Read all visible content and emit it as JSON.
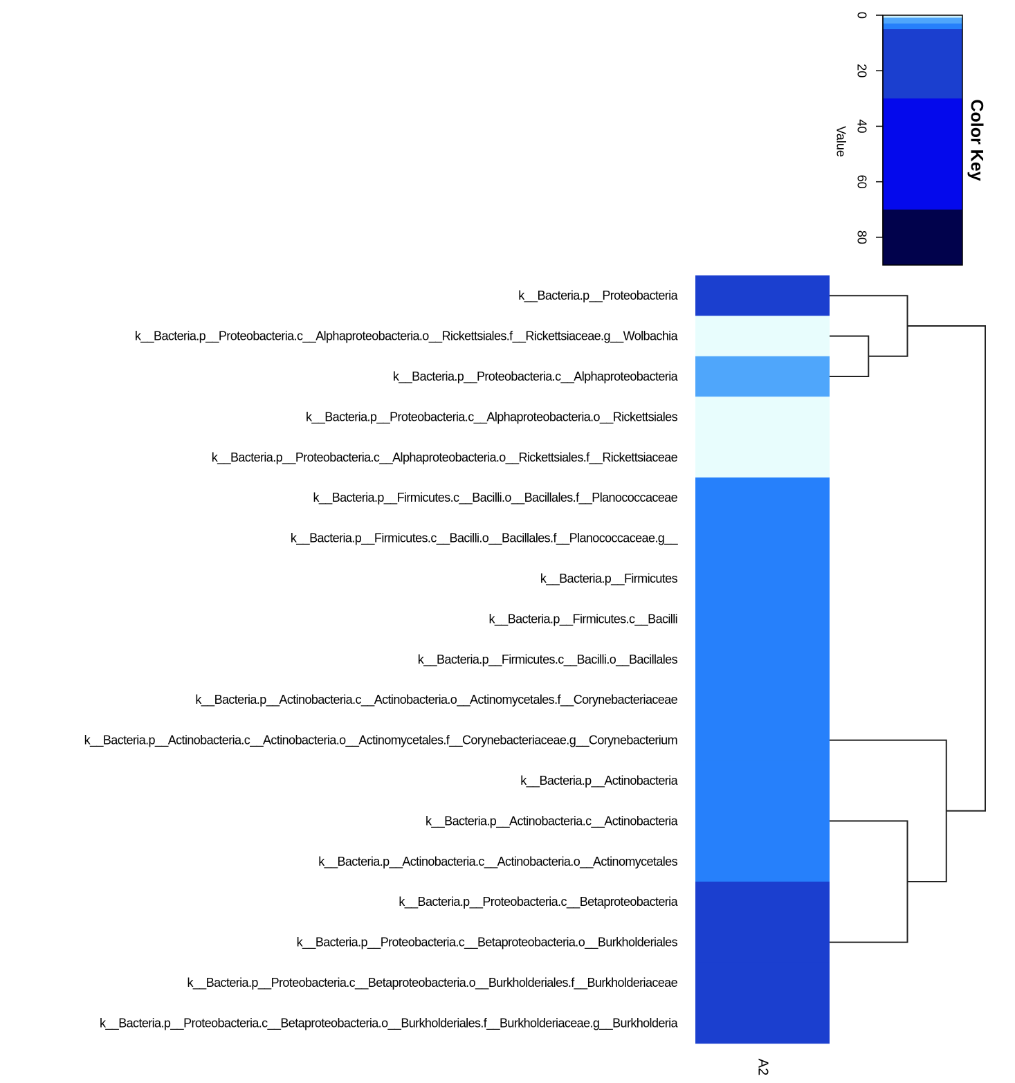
{
  "chart_data": {
    "type": "heatmap",
    "columns": [
      "A2"
    ],
    "rows": [
      {
        "label": "k__Bacteria.p__Proteobacteria",
        "value": 25,
        "color": "#1b3fcf"
      },
      {
        "label": "k__Bacteria.p__Proteobacteria.c__Alphaproteobacteria.o__Rickettsiales.f__Rickettsiaceae.g__Wolbachia",
        "value": 0,
        "color": "#e8fdfd"
      },
      {
        "label": "k__Bacteria.p__Proteobacteria.c__Alphaproteobacteria",
        "value": 3,
        "color": "#4fa6fb"
      },
      {
        "label": "k__Bacteria.p__Proteobacteria.c__Alphaproteobacteria.o__Rickettsiales",
        "value": 0,
        "color": "#e8fdfd"
      },
      {
        "label": "k__Bacteria.p__Proteobacteria.c__Alphaproteobacteria.o__Rickettsiales.f__Rickettsiaceae",
        "value": 0,
        "color": "#e8fdfd"
      },
      {
        "label": "k__Bacteria.p__Firmicutes.c__Bacilli.o__Bacillales.f__Planococcaceae",
        "value": 4,
        "color": "#2680fb"
      },
      {
        "label": "k__Bacteria.p__Firmicutes.c__Bacilli.o__Bacillales.f__Planococcaceae.g__",
        "value": 4,
        "color": "#2680fb"
      },
      {
        "label": "k__Bacteria.p__Firmicutes",
        "value": 4,
        "color": "#2680fb"
      },
      {
        "label": "k__Bacteria.p__Firmicutes.c__Bacilli",
        "value": 4,
        "color": "#2680fb"
      },
      {
        "label": "k__Bacteria.p__Firmicutes.c__Bacilli.o__Bacillales",
        "value": 4,
        "color": "#2680fb"
      },
      {
        "label": "k__Bacteria.p__Actinobacteria.c__Actinobacteria.o__Actinomycetales.f__Corynebacteriaceae",
        "value": 4,
        "color": "#2680fb"
      },
      {
        "label": "k__Bacteria.p__Actinobacteria.c__Actinobacteria.o__Actinomycetales.f__Corynebacteriaceae.g__Corynebacterium",
        "value": 4,
        "color": "#2680fb"
      },
      {
        "label": "k__Bacteria.p__Actinobacteria",
        "value": 4,
        "color": "#2680fb"
      },
      {
        "label": "k__Bacteria.p__Actinobacteria.c__Actinobacteria",
        "value": 4,
        "color": "#2680fb"
      },
      {
        "label": "k__Bacteria.p__Actinobacteria.c__Actinobacteria.o__Actinomycetales",
        "value": 4,
        "color": "#2680fb"
      },
      {
        "label": "k__Bacteria.p__Proteobacteria.c__Betaproteobacteria",
        "value": 25,
        "color": "#1b3fcf"
      },
      {
        "label": "k__Bacteria.p__Proteobacteria.c__Betaproteobacteria.o__Burkholderiales",
        "value": 25,
        "color": "#1b3fcf"
      },
      {
        "label": "k__Bacteria.p__Proteobacteria.c__Betaproteobacteria.o__Burkholderiales.f__Burkholderiaceae",
        "value": 25,
        "color": "#1b3fcf"
      },
      {
        "label": "k__Bacteria.p__Proteobacteria.c__Betaproteobacteria.o__Burkholderiales.f__Burkholderiaceae.g__Burkholderia",
        "value": 25,
        "color": "#1b3fcf"
      }
    ],
    "color_key": {
      "title": "Color Key",
      "axis_label": "Value",
      "range": [
        0,
        90
      ],
      "ticks": [
        0,
        20,
        40,
        60,
        80
      ],
      "bins": [
        {
          "from": 0,
          "to": 0.5,
          "color": "#e8fdfd"
        },
        {
          "from": 0.5,
          "to": 1,
          "color": "#9fd6fb"
        },
        {
          "from": 1,
          "to": 3,
          "color": "#4fa6fb"
        },
        {
          "from": 3,
          "to": 5,
          "color": "#2680fb"
        },
        {
          "from": 5,
          "to": 30,
          "color": "#1b3fcf"
        },
        {
          "from": 30,
          "to": 70,
          "color": "#0409ec"
        },
        {
          "from": 70,
          "to": 90,
          "color": "#01024c"
        }
      ]
    },
    "dendrogram": {
      "type": "row",
      "leaf_order": "rows",
      "merges": [
        [
          1,
          2,
          1
        ],
        [
          0,
          19,
          2
        ],
        [
          13,
          16,
          2
        ],
        [
          11,
          21,
          3
        ],
        [
          20,
          22,
          4
        ]
      ]
    }
  }
}
